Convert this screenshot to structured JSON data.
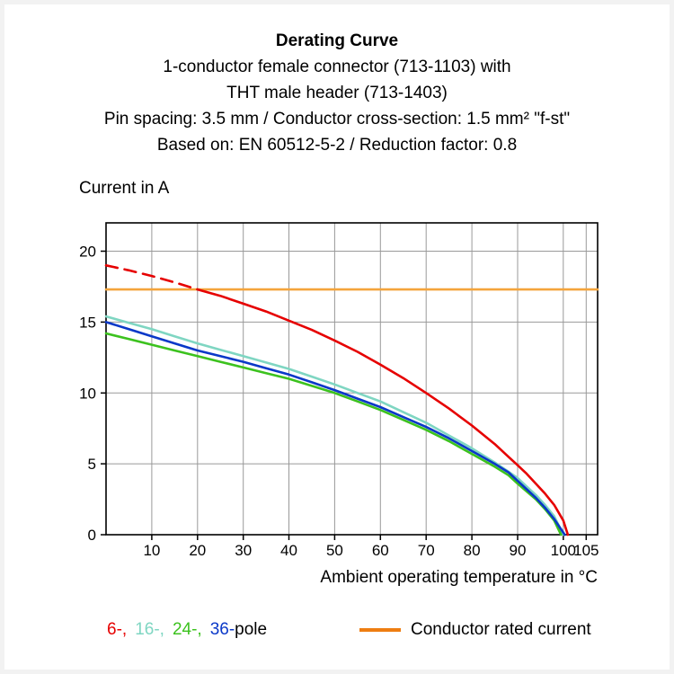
{
  "header": {
    "title": "Derating Curve",
    "subtitle_lines": [
      "1-conductor female connector (713-1103) with",
      "THT male header (713-1403)",
      "Pin spacing: 3.5 mm / Conductor cross-section: 1.5 mm² \"f-st\"",
      "Based on: EN 60512-5-2 / Reduction factor: 0.8"
    ]
  },
  "chart_data": {
    "type": "line",
    "title": "Derating Curve",
    "ylabel": "Current in A",
    "xlabel": "Ambient operating temperature in °C",
    "xlim": [
      0,
      107.5
    ],
    "ylim": [
      0,
      22
    ],
    "x_ticks": [
      10,
      20,
      30,
      40,
      50,
      60,
      70,
      80,
      90,
      100,
      105
    ],
    "y_ticks": [
      0,
      5,
      10,
      15,
      20
    ],
    "grid": true,
    "legend_position": "bottom",
    "series": [
      {
        "name": "Conductor rated current",
        "color": "#f4a43c",
        "dash": false,
        "points": [
          [
            0,
            17.3
          ],
          [
            107.5,
            17.3
          ]
        ]
      },
      {
        "name": "16-pole",
        "color": "#7fd6c2",
        "dash": false,
        "points": [
          [
            0,
            15.4
          ],
          [
            5,
            14.95
          ],
          [
            10,
            14.5
          ],
          [
            15,
            14.0
          ],
          [
            20,
            13.5
          ],
          [
            25,
            13.05
          ],
          [
            30,
            12.6
          ],
          [
            35,
            12.15
          ],
          [
            40,
            11.7
          ],
          [
            45,
            11.15
          ],
          [
            50,
            10.6
          ],
          [
            55,
            10.0
          ],
          [
            60,
            9.4
          ],
          [
            65,
            8.65
          ],
          [
            70,
            7.9
          ],
          [
            75,
            7.0
          ],
          [
            80,
            6.1
          ],
          [
            85,
            5.1
          ],
          [
            88,
            4.45
          ],
          [
            90,
            4.0
          ],
          [
            92,
            3.4
          ],
          [
            94,
            2.8
          ],
          [
            96,
            2.1
          ],
          [
            98,
            1.3
          ],
          [
            100,
            0
          ]
        ]
      },
      {
        "name": "24-pole",
        "color": "#3cc21e",
        "dash": false,
        "points": [
          [
            0,
            14.2
          ],
          [
            5,
            13.8
          ],
          [
            10,
            13.4
          ],
          [
            15,
            13.0
          ],
          [
            20,
            12.6
          ],
          [
            25,
            12.2
          ],
          [
            30,
            11.8
          ],
          [
            35,
            11.4
          ],
          [
            40,
            11.0
          ],
          [
            45,
            10.5
          ],
          [
            50,
            10.0
          ],
          [
            55,
            9.4
          ],
          [
            60,
            8.8
          ],
          [
            65,
            8.1
          ],
          [
            70,
            7.4
          ],
          [
            75,
            6.6
          ],
          [
            80,
            5.7
          ],
          [
            85,
            4.8
          ],
          [
            88,
            4.2
          ],
          [
            90,
            3.6
          ],
          [
            92,
            3.05
          ],
          [
            94,
            2.5
          ],
          [
            96,
            1.8
          ],
          [
            98,
            1.0
          ],
          [
            99.5,
            0
          ]
        ]
      },
      {
        "name": "36-pole",
        "color": "#0a38c8",
        "dash": false,
        "points": [
          [
            0,
            15.0
          ],
          [
            5,
            14.5
          ],
          [
            10,
            14.0
          ],
          [
            15,
            13.5
          ],
          [
            20,
            13.0
          ],
          [
            25,
            12.6
          ],
          [
            30,
            12.2
          ],
          [
            35,
            11.75
          ],
          [
            40,
            11.3
          ],
          [
            45,
            10.75
          ],
          [
            50,
            10.2
          ],
          [
            55,
            9.6
          ],
          [
            60,
            9.0
          ],
          [
            65,
            8.3
          ],
          [
            70,
            7.6
          ],
          [
            75,
            6.8
          ],
          [
            80,
            5.9
          ],
          [
            85,
            5.0
          ],
          [
            88,
            4.4
          ],
          [
            90,
            3.8
          ],
          [
            92,
            3.2
          ],
          [
            94,
            2.6
          ],
          [
            96,
            1.9
          ],
          [
            98,
            1.1
          ],
          [
            100.3,
            0
          ]
        ]
      },
      {
        "name": "6-pole (below conductor rated current, dashed)",
        "color": "#e60000",
        "dash": true,
        "points": [
          [
            0,
            19.0
          ],
          [
            5,
            18.65
          ],
          [
            10,
            18.25
          ],
          [
            15,
            17.8
          ],
          [
            20,
            17.3
          ]
        ]
      },
      {
        "name": "6-pole",
        "color": "#e60000",
        "dash": false,
        "points": [
          [
            20,
            17.3
          ],
          [
            25,
            16.85
          ],
          [
            30,
            16.3
          ],
          [
            35,
            15.75
          ],
          [
            40,
            15.1
          ],
          [
            45,
            14.45
          ],
          [
            50,
            13.7
          ],
          [
            55,
            12.9
          ],
          [
            60,
            12.0
          ],
          [
            65,
            11.05
          ],
          [
            70,
            10.0
          ],
          [
            75,
            8.9
          ],
          [
            80,
            7.7
          ],
          [
            85,
            6.4
          ],
          [
            88,
            5.5
          ],
          [
            90,
            4.9
          ],
          [
            92,
            4.3
          ],
          [
            94,
            3.6
          ],
          [
            96,
            2.9
          ],
          [
            98,
            2.1
          ],
          [
            100,
            1.0
          ],
          [
            101,
            0
          ]
        ]
      }
    ]
  },
  "legend": {
    "pole_items": [
      {
        "label": "6-,",
        "color": "#e60000"
      },
      {
        "label": "16-,",
        "color": "#7fd6c2"
      },
      {
        "label": "24-,",
        "color": "#3cc21e"
      },
      {
        "label": "36-",
        "color": "#0a38c8"
      }
    ],
    "pole_suffix": "pole",
    "rated_label": "Conductor rated current",
    "rated_color": "#ee7d11"
  }
}
